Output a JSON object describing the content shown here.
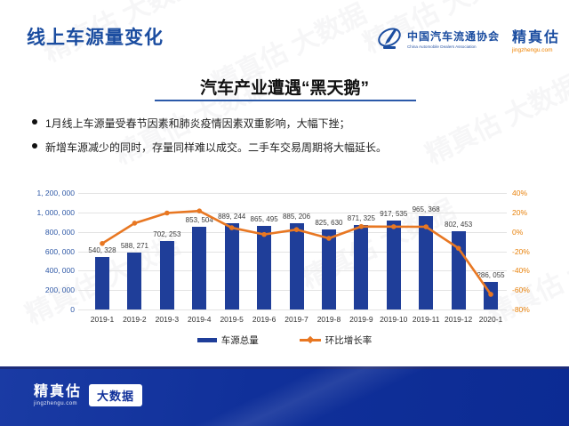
{
  "header": {
    "title": "线上车源量变化",
    "cada": {
      "name_cn": "中国汽车流通协会",
      "name_en": "China Automobile Dealers Association"
    },
    "jzg": {
      "name": "精真估",
      "domain": "jingzhengu.com"
    }
  },
  "section": {
    "title": "汽车产业遭遇“黑天鹅”"
  },
  "bullets": [
    "1月线上车源量受春节因素和肺炎疫情因素双重影响，大幅下挫；",
    "新增车源减少的同时，存量同样难以成交。二手车交易周期将大幅延长。"
  ],
  "chart_data": {
    "type": "bar",
    "subtype": "bar+line combo",
    "categories": [
      "2019-1",
      "2019-2",
      "2019-3",
      "2019-4",
      "2019-5",
      "2019-6",
      "2019-7",
      "2019-8",
      "2019-9",
      "2019-10",
      "2019-11",
      "2019-12",
      "2020-1"
    ],
    "series": [
      {
        "name": "车源总量",
        "type": "bar",
        "color": "#1f3e99",
        "values": [
          540328,
          588271,
          702253,
          853504,
          889244,
          865495,
          885206,
          825630,
          871325,
          917535,
          965368,
          802453,
          286055
        ],
        "labels": [
          "540, 328",
          "588, 271",
          "702, 253",
          "853, 504",
          "889, 244",
          "865, 495",
          "885, 206",
          "825, 630",
          "871, 325",
          "917, 535",
          "965, 368",
          "802, 453",
          "286, 055"
        ]
      },
      {
        "name": "环比增长率",
        "type": "line",
        "color": "#e87722",
        "values": [
          -12,
          8.9,
          19.4,
          21.5,
          4.2,
          -2.7,
          2.3,
          -6.7,
          5.5,
          5.3,
          5.2,
          -16.9,
          -64.4
        ]
      }
    ],
    "left_axis": {
      "ticks": [
        "1, 200, 000",
        "1, 000, 000",
        "800, 000",
        "600, 000",
        "400, 000",
        "200, 000",
        "0"
      ],
      "min": 0,
      "max": 1200000
    },
    "right_axis": {
      "ticks": [
        "40%",
        "20%",
        "0%",
        "-20%",
        "-40%",
        "-60%",
        "-80%"
      ],
      "min": -80,
      "max": 40
    },
    "legend": [
      "车源总量",
      "环比增长率"
    ],
    "legend_position": "bottom",
    "grid": true
  },
  "footer": {
    "name": "精真估",
    "domain": "jingzhengu.com",
    "badge": "大数据"
  },
  "watermark": {
    "text": "精真估 大数据"
  },
  "colors": {
    "title_blue": "#1b4da0",
    "bar_blue": "#1f3e99",
    "line_orange": "#e87722",
    "left_axis_blue": "#2e58a6",
    "right_axis_orange": "#e8820c",
    "footer_blue": "#10309a",
    "underline_blue": "#2b59a9",
    "jzg_orange": "#f08300"
  }
}
